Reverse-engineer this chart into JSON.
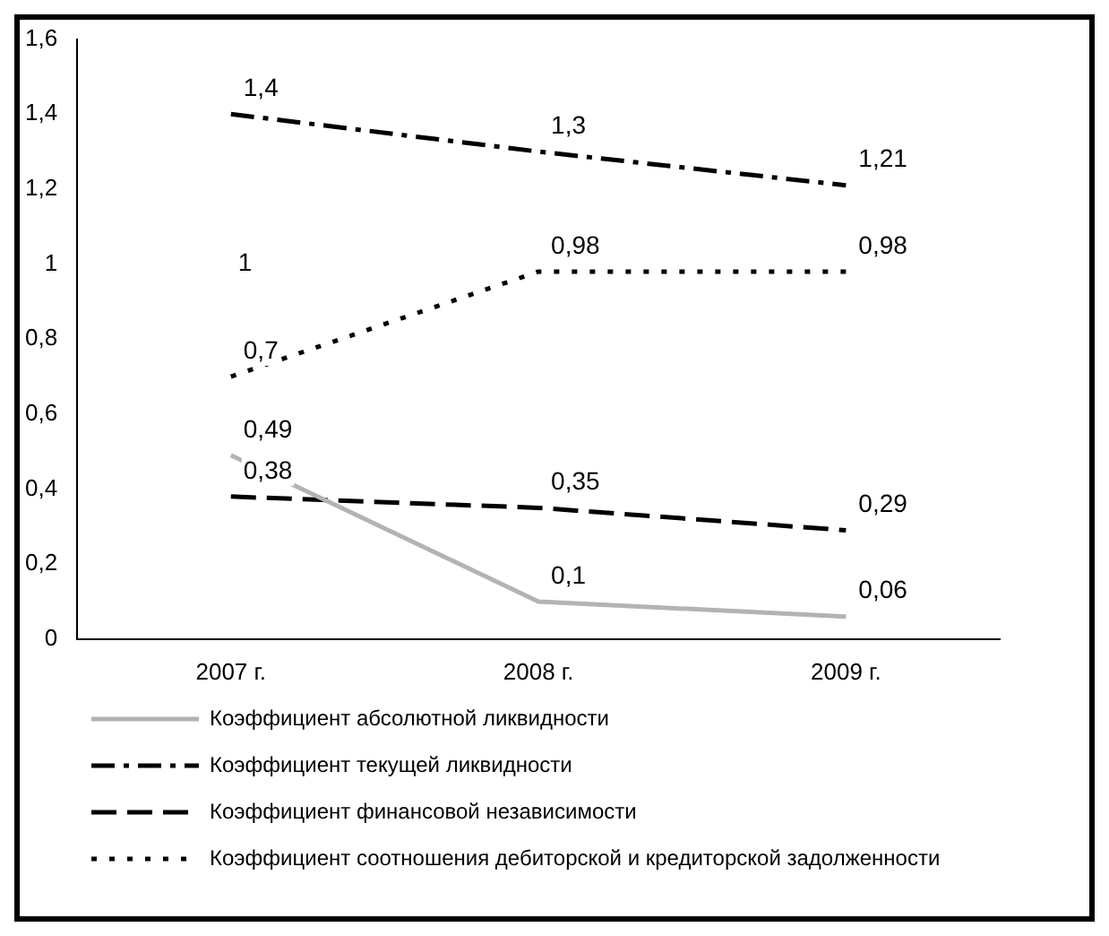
{
  "chart_data": {
    "type": "line",
    "categories": [
      "2007 г.",
      "2008 г.",
      "2009 г."
    ],
    "series": [
      {
        "name": "Коэффициент абсолютной ликвидности",
        "color": "#b3b3b3",
        "line_style": "solid",
        "values": [
          0.49,
          0.1,
          0.06
        ],
        "value_labels": [
          "0,49",
          "0,1",
          "0,06"
        ]
      },
      {
        "name": "Коэффициент текущей ликвидности",
        "color": "#000000",
        "line_style": "dashdot",
        "values": [
          1.4,
          1.3,
          1.21
        ],
        "value_labels": [
          "1,4",
          "1,3",
          "1,21"
        ]
      },
      {
        "name": "Коэффициент финансовой независимости",
        "color": "#000000",
        "line_style": "dashed",
        "values": [
          0.38,
          0.35,
          0.29
        ],
        "value_labels": [
          "0,38",
          "0,35",
          "0,29"
        ]
      },
      {
        "name": "Коэффициент соотношения дебиторской и кредиторской задолженности",
        "color": "#000000",
        "line_style": "dotted",
        "values": [
          0.7,
          0.98,
          0.98
        ],
        "value_labels": [
          "0,7",
          "0,98",
          "0,98"
        ]
      }
    ],
    "ylim": [
      0,
      1.6
    ],
    "yticks": [
      0,
      {
        "value": 0.2,
        "label": "0,2"
      },
      {
        "value": 0.4,
        "label": "0,4"
      },
      {
        "value": 0.6,
        "label": "0,6"
      },
      {
        "value": 0.8,
        "label": "0,8"
      },
      1,
      {
        "value": 1.2,
        "label": "1,2"
      },
      {
        "value": 1.4,
        "label": "1,4"
      },
      {
        "value": 1.6,
        "label": "1,6"
      }
    ],
    "annotations": [
      "1"
    ],
    "grid": false,
    "legend": "bottom",
    "marker": "none"
  }
}
